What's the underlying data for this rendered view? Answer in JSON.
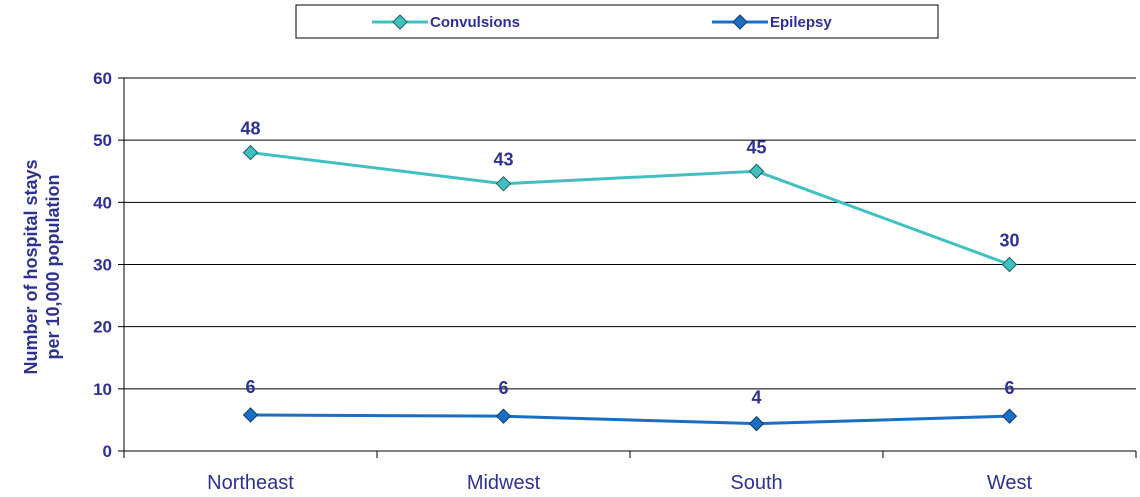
{
  "chart_data": {
    "type": "line",
    "categories": [
      "Northeast",
      "Midwest",
      "South",
      "West"
    ],
    "series": [
      {
        "name": "Convulsions",
        "values": [
          48,
          43,
          45,
          30
        ],
        "labels": [
          "48",
          "43",
          "45",
          "30"
        ],
        "color": "#40c0c0",
        "marker_fill": "#40c0c0"
      },
      {
        "name": "Epilepsy",
        "values": [
          5.8,
          5.6,
          4.4,
          5.6
        ],
        "labels": [
          "6",
          "6",
          "4",
          "6"
        ],
        "color": "#1a6fc4",
        "marker_fill": "#1a6fc4"
      }
    ],
    "ylabel_line1": "Number of hospital stays",
    "ylabel_line2": "per 10,000 population",
    "ylim": [
      0,
      60
    ],
    "yticks": [
      "0",
      "10",
      "20",
      "30",
      "40",
      "50",
      "60"
    ],
    "grid": true,
    "legend_position": "top-center"
  }
}
